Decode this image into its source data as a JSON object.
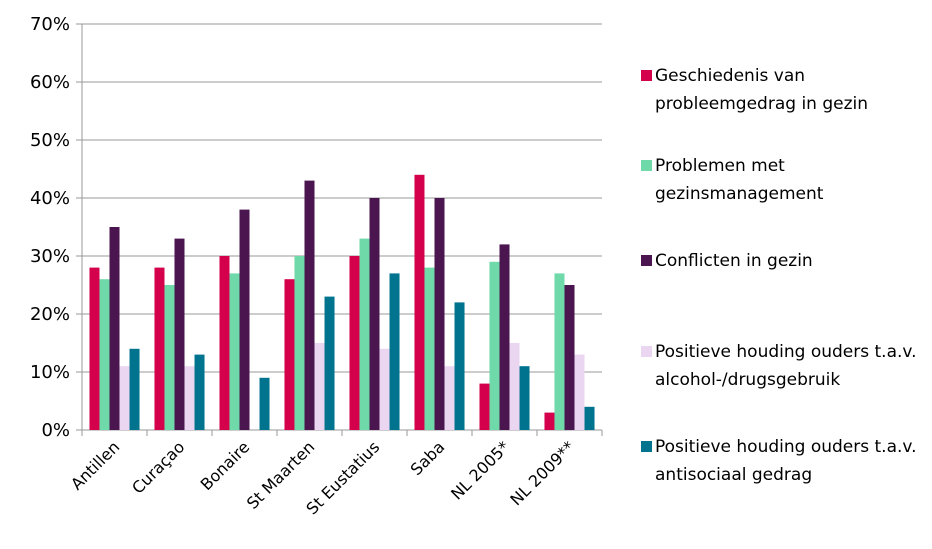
{
  "chart_data": {
    "type": "bar",
    "categories": [
      "Antillen",
      "Curaçao",
      "Bonaire",
      "St Maarten",
      "St Eustatius",
      "Saba",
      "NL 2005*",
      "NL 2009**"
    ],
    "series": [
      {
        "name": "Geschiedenis van probleemgedrag in gezin",
        "color": "#d4004c",
        "values": [
          28,
          28,
          30,
          26,
          30,
          44,
          8,
          3
        ]
      },
      {
        "name": "Problemen met gezinsmanagement",
        "color": "#6fd9a9",
        "values": [
          26,
          25,
          27,
          30,
          33,
          28,
          29,
          27
        ]
      },
      {
        "name": "Conflicten in gezin",
        "color": "#4b1650",
        "values": [
          35,
          33,
          38,
          43,
          40,
          40,
          32,
          25
        ]
      },
      {
        "name": "Positieve houding ouders t.a.v. alcohol-/drugsgebruik",
        "color": "#ead6f0",
        "values": [
          11,
          11,
          null,
          15,
          14,
          11,
          15,
          13
        ]
      },
      {
        "name": "Positieve houding ouders t.a.v. antisociaal gedrag",
        "color": "#00738f",
        "values": [
          14,
          13,
          9,
          23,
          27,
          22,
          11,
          4
        ]
      }
    ],
    "ylim": [
      0,
      70
    ],
    "yticks": [
      {
        "value": 0,
        "label": "0%"
      },
      {
        "value": 10,
        "label": "10%"
      },
      {
        "value": 20,
        "label": "20%"
      },
      {
        "value": 30,
        "label": "30%"
      },
      {
        "value": 40,
        "label": "40%"
      },
      {
        "value": 50,
        "label": "50%"
      },
      {
        "value": 60,
        "label": "60%"
      },
      {
        "value": 70,
        "label": "70%"
      }
    ],
    "grid": true,
    "legend": "right"
  }
}
